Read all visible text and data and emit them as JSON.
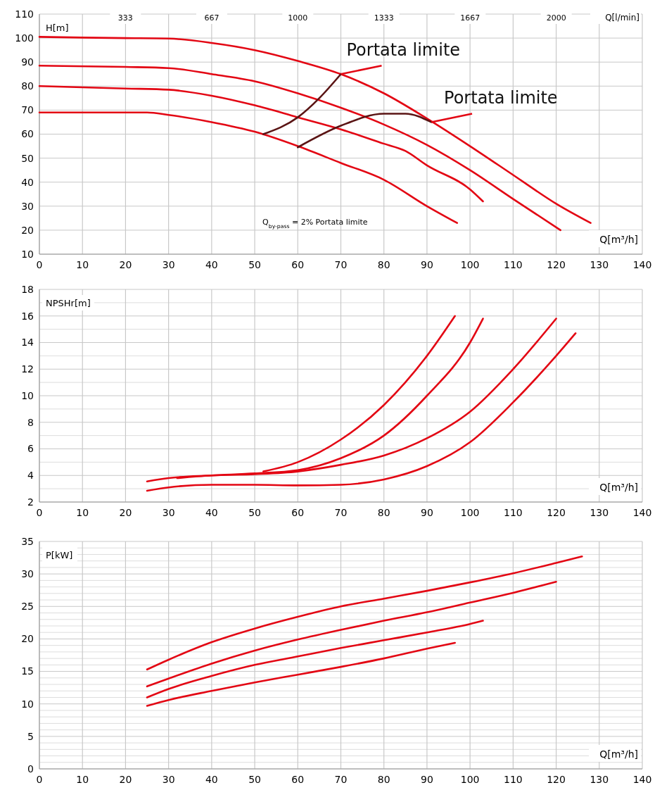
{
  "chart_data": [
    {
      "type": "line",
      "ylabel": "H[m]",
      "xlabel": "Q[m³/h]",
      "x2label": "Q[l/min]",
      "xlim": [
        0,
        140
      ],
      "xticks": [
        0,
        10,
        20,
        30,
        40,
        50,
        60,
        70,
        80,
        90,
        100,
        110,
        120,
        130,
        140
      ],
      "x2lim": [
        0,
        2333
      ],
      "x2ticks": [
        333,
        667,
        1000,
        1333,
        1667,
        2000
      ],
      "ylim": [
        10,
        110
      ],
      "yticks": [
        10,
        20,
        30,
        40,
        50,
        60,
        70,
        80,
        90,
        100,
        110
      ],
      "grid": true,
      "series": [
        {
          "color": "#e30613",
          "x": [
            0,
            10,
            20,
            30,
            40,
            50,
            60,
            70,
            80,
            90,
            100,
            110,
            120,
            128
          ],
          "values": [
            100.5,
            100.2,
            100,
            99.8,
            98,
            95,
            90.5,
            85,
            77,
            66.5,
            55,
            43,
            31,
            23
          ]
        },
        {
          "color": "#e30613",
          "x": [
            0,
            20,
            30,
            40,
            50,
            60,
            70,
            80,
            90,
            100,
            110,
            121
          ],
          "values": [
            88.5,
            88,
            87.5,
            85,
            82,
            77,
            71,
            64,
            55.5,
            45,
            33,
            20
          ]
        },
        {
          "color": "#e30613",
          "x": [
            0,
            20,
            30,
            40,
            50,
            60,
            70,
            80,
            85,
            90,
            100,
            103
          ],
          "values": [
            80,
            79,
            78.5,
            76,
            72,
            67,
            62,
            56,
            53,
            47,
            37,
            32
          ]
        },
        {
          "color": "#e30613",
          "x": [
            0,
            25,
            30,
            40,
            50,
            60,
            70,
            80,
            90,
            97
          ],
          "values": [
            69,
            69,
            68,
            65,
            61,
            55,
            48,
            41,
            30,
            23
          ]
        },
        {
          "color": "#5a1414",
          "x": [
            52,
            60,
            65,
            70
          ],
          "values": [
            60,
            67,
            75,
            85
          ]
        },
        {
          "color": "#5a1414",
          "x": [
            60,
            70,
            80,
            85,
            91
          ],
          "values": [
            54.5,
            63.5,
            68.5,
            68.5,
            65
          ]
        }
      ],
      "annotations": [
        {
          "text": "Portata limite",
          "x": 70,
          "y": 85
        },
        {
          "text": "Portata limite",
          "x": 91,
          "y": 65
        },
        "Q$_{by-pass}$ = 2% Portata limite"
      ]
    },
    {
      "type": "line",
      "ylabel": "NPSHr[m]",
      "xlabel": "Q[m³/h]",
      "xlim": [
        0,
        140
      ],
      "xticks": [
        0,
        10,
        20,
        30,
        40,
        50,
        60,
        70,
        80,
        90,
        100,
        110,
        120,
        130,
        140
      ],
      "ylim": [
        2,
        18
      ],
      "yticks": [
        2,
        {
          "value": 3,
          "label": null
        },
        4,
        {
          "value": 5,
          "label": null
        },
        6,
        {
          "value": 7,
          "label": null
        },
        8,
        {
          "value": 9,
          "label": null
        },
        10,
        {
          "value": 11,
          "label": null
        },
        12,
        {
          "value": 13,
          "label": null
        },
        14,
        {
          "value": 15,
          "label": null
        },
        16,
        {
          "value": 17,
          "label": null
        },
        18
      ],
      "grid": true,
      "series": [
        {
          "color": "#e30613",
          "x": [
            52,
            60,
            70,
            80,
            90,
            96.5
          ],
          "values": [
            4.3,
            5.0,
            6.7,
            9.3,
            13,
            16
          ]
        },
        {
          "color": "#e30613",
          "x": [
            25,
            30,
            40,
            50,
            60,
            70,
            80,
            90,
            100,
            103
          ],
          "values": [
            3.55,
            3.8,
            4.0,
            4.15,
            4.4,
            5.3,
            7.0,
            10,
            14,
            15.8
          ]
        },
        {
          "color": "#e30613",
          "x": [
            32,
            40,
            50,
            60,
            70,
            80,
            90,
            100,
            110,
            120
          ],
          "values": [
            3.8,
            4.0,
            4.1,
            4.3,
            4.8,
            5.5,
            6.8,
            8.8,
            12,
            15.8
          ]
        },
        {
          "color": "#e30613",
          "x": [
            25,
            30,
            40,
            50,
            60,
            70,
            80,
            90,
            100,
            110,
            120,
            124.5
          ],
          "values": [
            2.85,
            3.1,
            3.3,
            3.3,
            3.25,
            3.3,
            3.7,
            4.7,
            6.5,
            9.5,
            13,
            14.7
          ]
        }
      ]
    },
    {
      "type": "line",
      "ylabel": "P[kW]",
      "xlabel": "Q[m³/h]",
      "xlim": [
        0,
        140
      ],
      "xticks": [
        0,
        10,
        20,
        30,
        40,
        50,
        60,
        70,
        80,
        90,
        100,
        110,
        120,
        130,
        140
      ],
      "ylim": [
        0,
        35
      ],
      "yticks": [
        0,
        {
          "value": 1,
          "label": null
        },
        {
          "value": 2,
          "label": null
        },
        {
          "value": 3,
          "label": null
        },
        {
          "value": 4,
          "label": null
        },
        5,
        {
          "value": 6,
          "label": null
        },
        {
          "value": 7,
          "label": null
        },
        {
          "value": 8,
          "label": null
        },
        {
          "value": 9,
          "label": null
        },
        10,
        {
          "value": 11,
          "label": null
        },
        {
          "value": 12,
          "label": null
        },
        {
          "value": 13,
          "label": null
        },
        {
          "value": 14,
          "label": null
        },
        15,
        {
          "value": 16,
          "label": null
        },
        {
          "value": 17,
          "label": null
        },
        {
          "value": 18,
          "label": null
        },
        {
          "value": 19,
          "label": null
        },
        20,
        {
          "value": 21,
          "label": null
        },
        {
          "value": 22,
          "label": null
        },
        {
          "value": 23,
          "label": null
        },
        {
          "value": 24,
          "label": null
        },
        25,
        {
          "value": 26,
          "label": null
        },
        {
          "value": 27,
          "label": null
        },
        {
          "value": 28,
          "label": null
        },
        {
          "value": 29,
          "label": null
        },
        30,
        {
          "value": 31,
          "label": null
        },
        {
          "value": 32,
          "label": null
        },
        {
          "value": 33,
          "label": null
        },
        {
          "value": 34,
          "label": null
        },
        35
      ],
      "grid": true,
      "series": [
        {
          "color": "#e30613",
          "x": [
            25,
            30,
            40,
            50,
            60,
            70,
            80,
            90,
            100,
            110,
            120,
            126
          ],
          "values": [
            15.3,
            16.8,
            19.5,
            21.6,
            23.4,
            25,
            26.2,
            27.4,
            28.7,
            30.1,
            31.7,
            32.7
          ]
        },
        {
          "color": "#e30613",
          "x": [
            25,
            30,
            40,
            50,
            60,
            70,
            80,
            90,
            100,
            110,
            120
          ],
          "values": [
            12.7,
            13.9,
            16.2,
            18.2,
            19.9,
            21.4,
            22.8,
            24.1,
            25.6,
            27.1,
            28.8
          ]
        },
        {
          "color": "#e30613",
          "x": [
            25,
            30,
            40,
            50,
            60,
            70,
            80,
            90,
            100,
            103
          ],
          "values": [
            11,
            12.3,
            14.3,
            16,
            17.3,
            18.6,
            19.8,
            21,
            22.3,
            22.8
          ]
        },
        {
          "color": "#e30613",
          "x": [
            25,
            30,
            40,
            50,
            60,
            70,
            80,
            90,
            96.5
          ],
          "values": [
            9.7,
            10.6,
            12,
            13.3,
            14.5,
            15.7,
            17,
            18.5,
            19.4
          ]
        }
      ]
    }
  ]
}
